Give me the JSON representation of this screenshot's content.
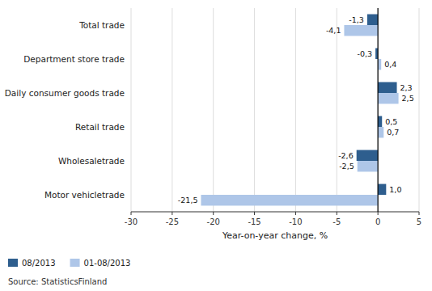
{
  "chart_data": {
    "type": "bar",
    "orientation": "horizontal",
    "xlabel": "Year-on-year change, %",
    "categories": [
      "Motor vehicletrade",
      "Wholesaletrade",
      "Retail trade",
      "Daily consumer goods trade",
      "Department store trade",
      "Total trade"
    ],
    "series": [
      {
        "name": "08/2013",
        "color": "#2e5e8e",
        "values": [
          1.0,
          -2.6,
          0.5,
          2.3,
          -0.3,
          -1.3
        ],
        "value_labels": [
          "1,0",
          "-2,6",
          "0,5",
          "2,3",
          "-0,3",
          "-1,3"
        ]
      },
      {
        "name": "01-08/2013",
        "color": "#aec6e8",
        "values": [
          -21.5,
          -2.5,
          0.7,
          2.5,
          0.4,
          -4.1
        ],
        "value_labels": [
          "-21,5",
          "-2,5",
          "0,7",
          "2,5",
          "0,4",
          "-4,1"
        ]
      }
    ],
    "xlim": [
      -30,
      5
    ],
    "xticks": [
      -30,
      -25,
      -20,
      -15,
      -10,
      -5,
      0,
      5
    ],
    "grid": true,
    "legend": "lower left",
    "data_labels": true,
    "annotations": [
      "Source: StatisticsFinland"
    ]
  }
}
